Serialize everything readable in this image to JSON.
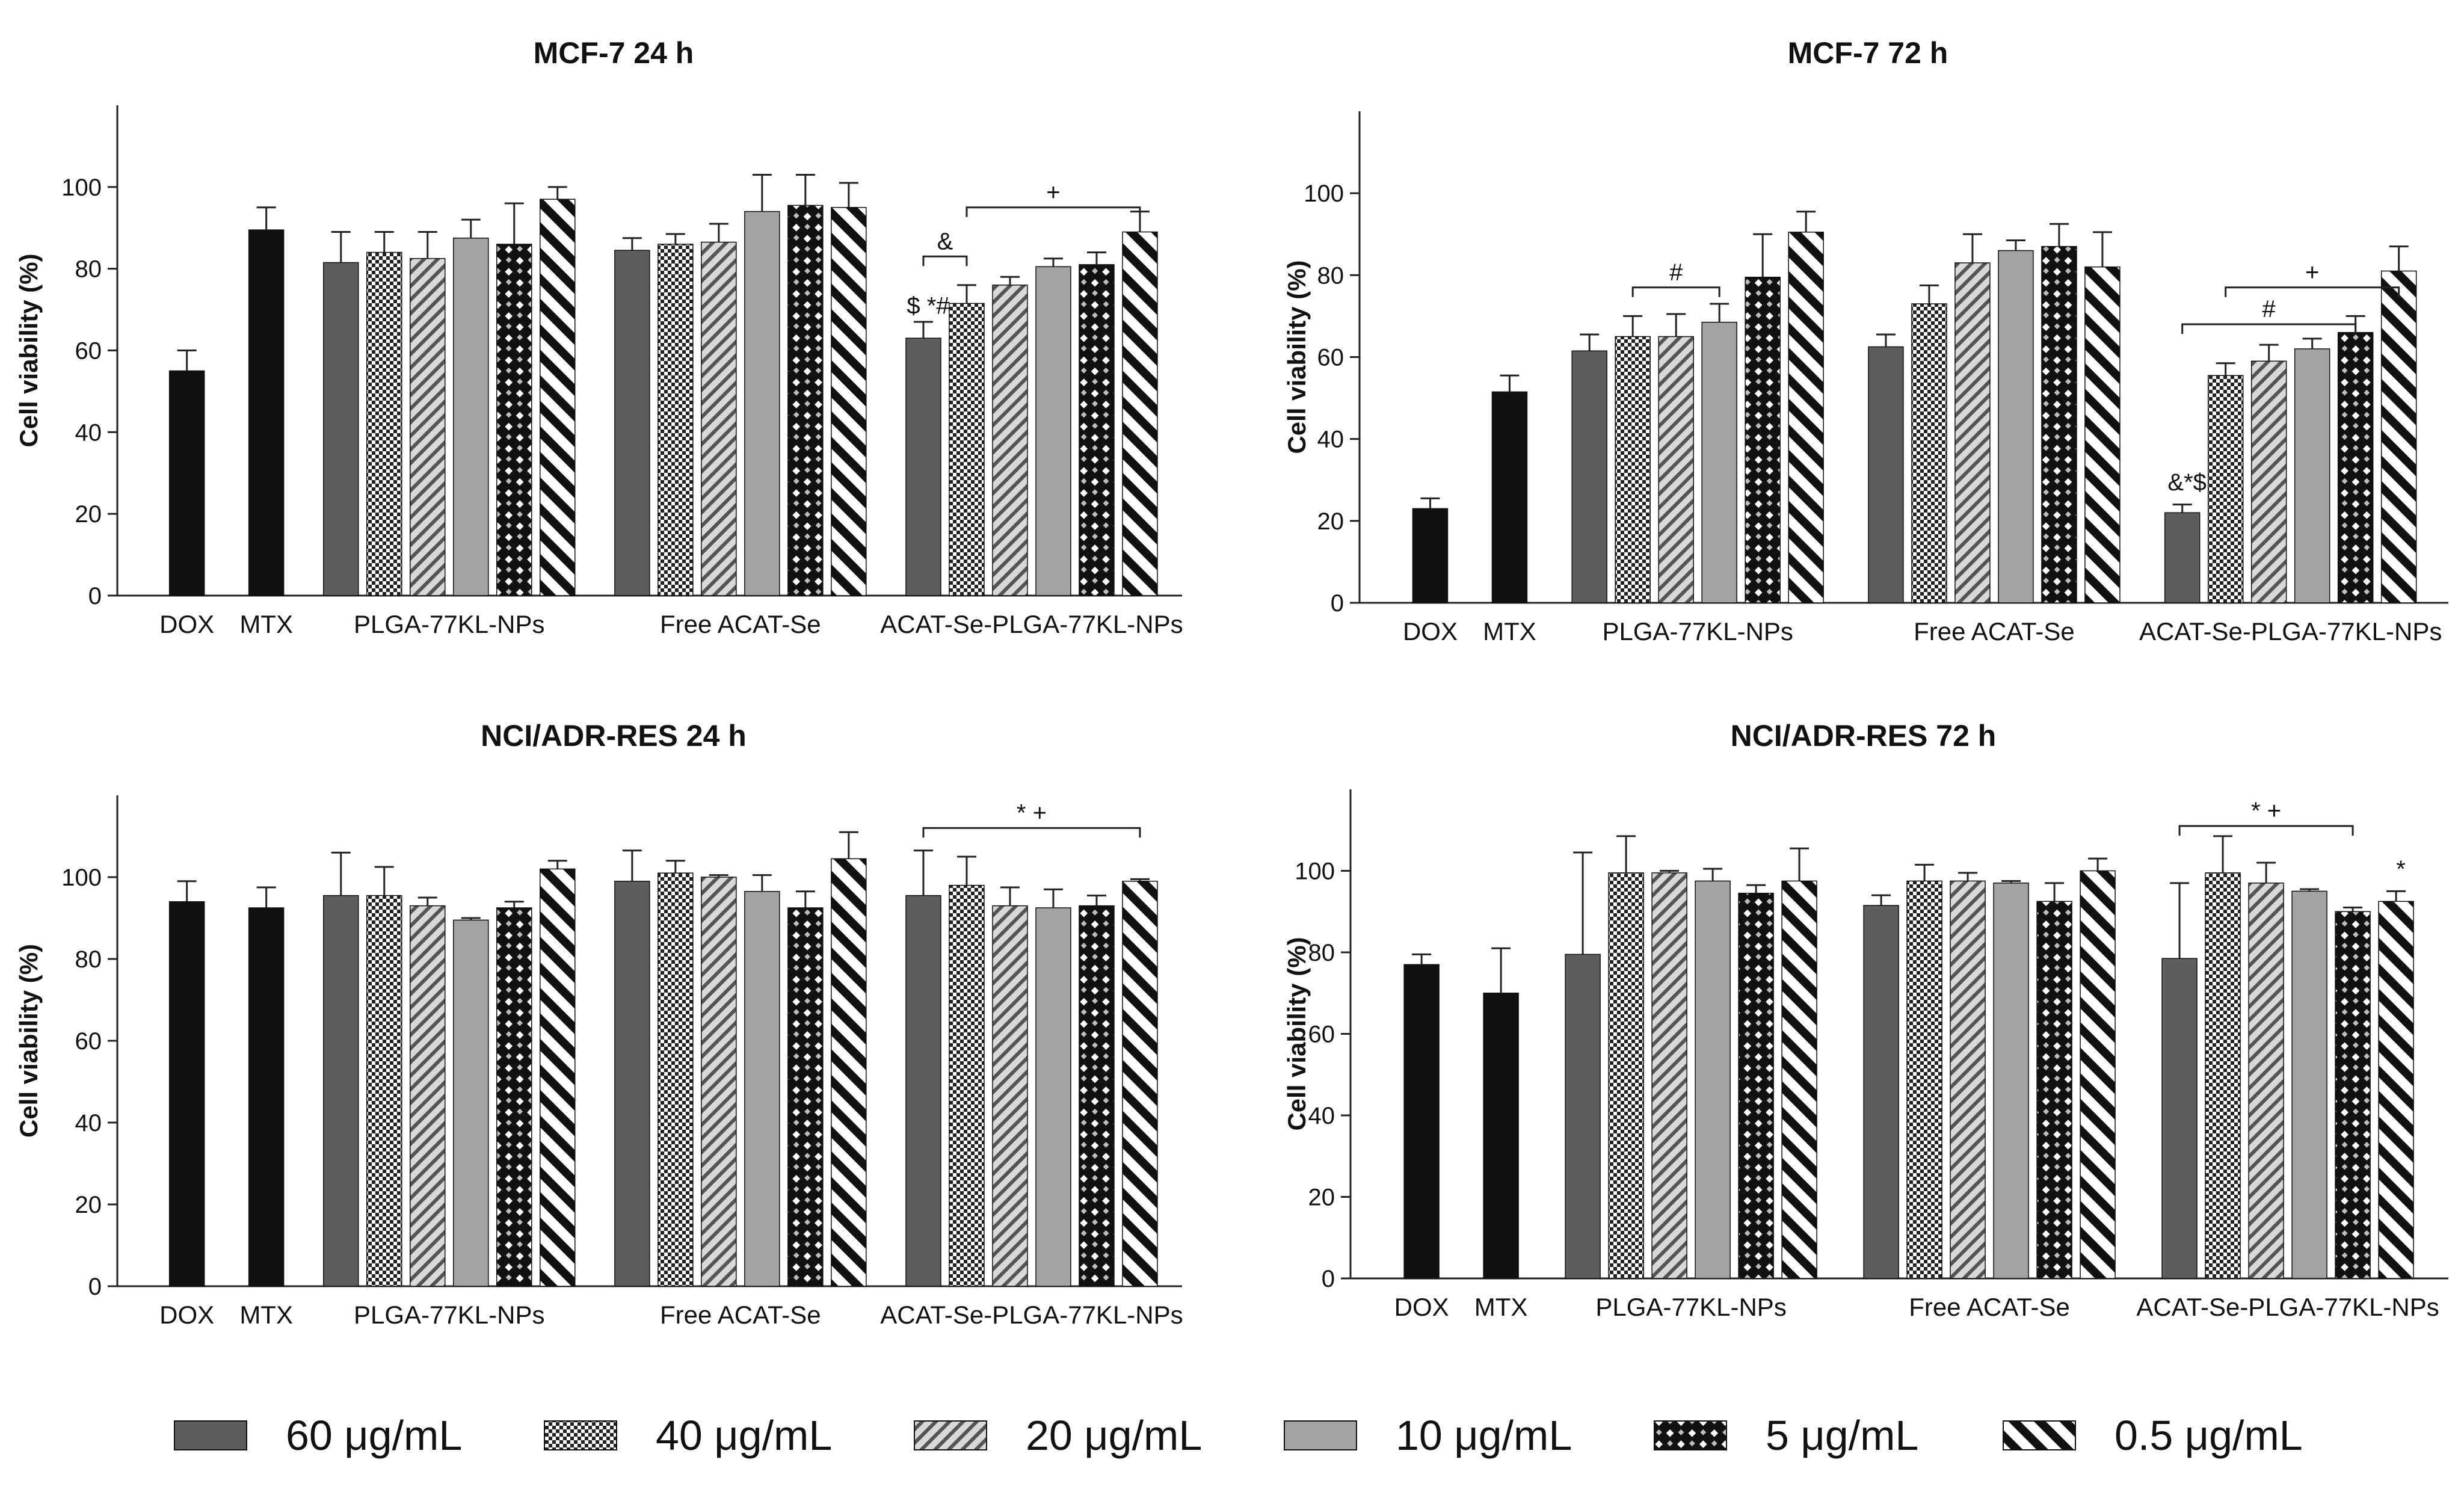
{
  "figure_title": "",
  "legend": {
    "items": [
      {
        "label": "60 μg/mL",
        "pattern": "solid-dark"
      },
      {
        "label": "40 μg/mL",
        "pattern": "checker-fine"
      },
      {
        "label": "20 μg/mL",
        "pattern": "diagonal-light"
      },
      {
        "label": "10 μg/mL",
        "pattern": "solid-light"
      },
      {
        "label": "5 μg/mL",
        "pattern": "checker-bold"
      },
      {
        "label": "0.5 μg/mL",
        "pattern": "diagonal-bold"
      }
    ]
  },
  "colors": {
    "black": "#111111",
    "dark_gray": "#5d5d5d",
    "light_gray": "#a3a3a3",
    "stroke": "#222222"
  },
  "chart_data": [
    {
      "type": "bar",
      "title": "MCF-7 24 h",
      "ylabel": "Cell viability (%)",
      "ylim": [
        0,
        120
      ],
      "yticks": [
        0,
        20,
        40,
        60,
        80,
        100
      ],
      "groups": [
        {
          "label": "DOX",
          "bars": [
            {
              "pattern": "solid-black",
              "value": 55,
              "err": 5
            }
          ]
        },
        {
          "label": "MTX",
          "bars": [
            {
              "pattern": "solid-black",
              "value": 89.5,
              "err": 5.5
            }
          ]
        },
        {
          "label": "PLGA-77KL-NPs",
          "bars": [
            {
              "pattern": "solid-dark",
              "value": 81.5,
              "err": 7.5
            },
            {
              "pattern": "checker-fine",
              "value": 84,
              "err": 5
            },
            {
              "pattern": "diagonal-light",
              "value": 82.5,
              "err": 6.5
            },
            {
              "pattern": "solid-light",
              "value": 87.5,
              "err": 4.5
            },
            {
              "pattern": "checker-bold",
              "value": 86,
              "err": 10
            },
            {
              "pattern": "diagonal-bold",
              "value": 97,
              "err": 3
            }
          ]
        },
        {
          "label": "Free ACAT-Se",
          "bars": [
            {
              "pattern": "solid-dark",
              "value": 84.5,
              "err": 3
            },
            {
              "pattern": "checker-fine",
              "value": 86,
              "err": 2.5
            },
            {
              "pattern": "diagonal-light",
              "value": 86.5,
              "err": 4.5
            },
            {
              "pattern": "solid-light",
              "value": 94,
              "err": 9
            },
            {
              "pattern": "checker-bold",
              "value": 95.5,
              "err": 7.5
            },
            {
              "pattern": "diagonal-bold",
              "value": 95,
              "err": 6
            }
          ]
        },
        {
          "label": "ACAT-Se-PLGA-77KL-NPs",
          "bars": [
            {
              "pattern": "solid-dark",
              "value": 63,
              "err": 4
            },
            {
              "pattern": "checker-fine",
              "value": 71.5,
              "err": 4.5
            },
            {
              "pattern": "diagonal-light",
              "value": 76,
              "err": 2
            },
            {
              "pattern": "solid-light",
              "value": 80.5,
              "err": 2
            },
            {
              "pattern": "checker-bold",
              "value": 81,
              "err": 3
            },
            {
              "pattern": "diagonal-bold",
              "value": 89,
              "err": 5
            }
          ]
        }
      ],
      "brackets": [
        {
          "group": 4,
          "from": 0,
          "to": 1,
          "y": 83,
          "label": "&"
        },
        {
          "group": 4,
          "from": 1,
          "to": 5,
          "y": 95,
          "label": "+"
        }
      ],
      "marks": [
        {
          "group": 4,
          "bar": 0,
          "y": 67.5,
          "label": "$ *#"
        }
      ]
    },
    {
      "type": "bar",
      "title": "MCF-7 72 h",
      "ylabel": "Cell viability (%)",
      "ylim": [
        0,
        120
      ],
      "yticks": [
        0,
        20,
        40,
        60,
        80,
        100
      ],
      "groups": [
        {
          "label": "DOX",
          "bars": [
            {
              "pattern": "solid-black",
              "value": 23,
              "err": 2.5
            }
          ]
        },
        {
          "label": "MTX",
          "bars": [
            {
              "pattern": "solid-black",
              "value": 51.5,
              "err": 4
            }
          ]
        },
        {
          "label": "PLGA-77KL-NPs",
          "bars": [
            {
              "pattern": "solid-dark",
              "value": 61.5,
              "err": 4
            },
            {
              "pattern": "checker-fine",
              "value": 65,
              "err": 5
            },
            {
              "pattern": "diagonal-light",
              "value": 65,
              "err": 5.5
            },
            {
              "pattern": "solid-light",
              "value": 68.5,
              "err": 4.5
            },
            {
              "pattern": "checker-bold",
              "value": 79.5,
              "err": 10.5
            },
            {
              "pattern": "diagonal-bold",
              "value": 90.5,
              "err": 5
            }
          ]
        },
        {
          "label": "Free ACAT-Se",
          "bars": [
            {
              "pattern": "solid-dark",
              "value": 62.5,
              "err": 3
            },
            {
              "pattern": "checker-fine",
              "value": 73,
              "err": 4.5
            },
            {
              "pattern": "diagonal-light",
              "value": 83,
              "err": 7
            },
            {
              "pattern": "solid-light",
              "value": 86,
              "err": 2.5
            },
            {
              "pattern": "checker-bold",
              "value": 87,
              "err": 5.5
            },
            {
              "pattern": "diagonal-bold",
              "value": 82,
              "err": 8.5
            }
          ]
        },
        {
          "label": "ACAT-Se-PLGA-77KL-NPs",
          "bars": [
            {
              "pattern": "solid-dark",
              "value": 22,
              "err": 2
            },
            {
              "pattern": "checker-fine",
              "value": 55.5,
              "err": 3
            },
            {
              "pattern": "diagonal-light",
              "value": 59,
              "err": 4
            },
            {
              "pattern": "solid-light",
              "value": 62,
              "err": 2.5
            },
            {
              "pattern": "checker-bold",
              "value": 66,
              "err": 4
            },
            {
              "pattern": "diagonal-bold",
              "value": 81,
              "err": 6
            }
          ]
        }
      ],
      "brackets": [
        {
          "group": 2,
          "from": 1,
          "to": 3,
          "y": 77,
          "label": "#"
        },
        {
          "group": 4,
          "from": 0,
          "to": 4,
          "y": 68,
          "label": "#"
        },
        {
          "group": 4,
          "from": 1,
          "to": 5,
          "y": 77,
          "label": "+"
        }
      ],
      "marks": [
        {
          "group": 4,
          "bar": 0,
          "y": 26,
          "label": "&*$"
        }
      ]
    },
    {
      "type": "bar",
      "title": "NCI/ADR-RES 24 h",
      "ylabel": "Cell viability (%)",
      "ylim": [
        0,
        120
      ],
      "yticks": [
        0,
        20,
        40,
        60,
        80,
        100
      ],
      "groups": [
        {
          "label": "DOX",
          "bars": [
            {
              "pattern": "solid-black",
              "value": 94,
              "err": 5
            }
          ]
        },
        {
          "label": "MTX",
          "bars": [
            {
              "pattern": "solid-black",
              "value": 92.5,
              "err": 5
            }
          ]
        },
        {
          "label": "PLGA-77KL-NPs",
          "bars": [
            {
              "pattern": "solid-dark",
              "value": 95.5,
              "err": 10.5
            },
            {
              "pattern": "checker-fine",
              "value": 95.5,
              "err": 7
            },
            {
              "pattern": "diagonal-light",
              "value": 93,
              "err": 2
            },
            {
              "pattern": "solid-light",
              "value": 89.5,
              "err": 0.5
            },
            {
              "pattern": "checker-bold",
              "value": 92.5,
              "err": 1.5
            },
            {
              "pattern": "diagonal-bold",
              "value": 102,
              "err": 2
            }
          ]
        },
        {
          "label": "Free ACAT-Se",
          "bars": [
            {
              "pattern": "solid-dark",
              "value": 99,
              "err": 7.5
            },
            {
              "pattern": "checker-fine",
              "value": 101,
              "err": 3
            },
            {
              "pattern": "diagonal-light",
              "value": 100,
              "err": 0.5
            },
            {
              "pattern": "solid-light",
              "value": 96.5,
              "err": 4
            },
            {
              "pattern": "checker-bold",
              "value": 92.5,
              "err": 4
            },
            {
              "pattern": "diagonal-bold",
              "value": 104.5,
              "err": 6.5
            }
          ]
        },
        {
          "label": "ACAT-Se-PLGA-77KL-NPs",
          "bars": [
            {
              "pattern": "solid-dark",
              "value": 95.5,
              "err": 11
            },
            {
              "pattern": "checker-fine",
              "value": 98,
              "err": 7
            },
            {
              "pattern": "diagonal-light",
              "value": 93,
              "err": 4.5
            },
            {
              "pattern": "solid-light",
              "value": 92.5,
              "err": 4.5
            },
            {
              "pattern": "checker-bold",
              "value": 93,
              "err": 2.5
            },
            {
              "pattern": "diagonal-bold",
              "value": 99,
              "err": 0.5
            }
          ]
        }
      ],
      "brackets": [
        {
          "group": 4,
          "from": 0,
          "to": 5,
          "y": 112,
          "label": "* +"
        }
      ],
      "marks": []
    },
    {
      "type": "bar",
      "title": "NCI/ADR-RES 72 h",
      "ylabel": "Cell viability (%)",
      "ylim": [
        0,
        120
      ],
      "yticks": [
        0,
        20,
        40,
        60,
        80,
        100
      ],
      "groups": [
        {
          "label": "DOX",
          "bars": [
            {
              "pattern": "solid-black",
              "value": 77,
              "err": 2.5
            }
          ]
        },
        {
          "label": "MTX",
          "bars": [
            {
              "pattern": "solid-black",
              "value": 70,
              "err": 11
            }
          ]
        },
        {
          "label": "PLGA-77KL-NPs",
          "bars": [
            {
              "pattern": "solid-dark",
              "value": 79.5,
              "err": 25
            },
            {
              "pattern": "checker-fine",
              "value": 99.5,
              "err": 9
            },
            {
              "pattern": "diagonal-light",
              "value": 99.5,
              "err": 0.5
            },
            {
              "pattern": "solid-light",
              "value": 97.5,
              "err": 3
            },
            {
              "pattern": "checker-bold",
              "value": 94.5,
              "err": 2
            },
            {
              "pattern": "diagonal-bold",
              "value": 97.5,
              "err": 8
            }
          ]
        },
        {
          "label": "Free ACAT-Se",
          "bars": [
            {
              "pattern": "solid-dark",
              "value": 91.5,
              "err": 2.5
            },
            {
              "pattern": "checker-fine",
              "value": 97.5,
              "err": 4
            },
            {
              "pattern": "diagonal-light",
              "value": 97.5,
              "err": 2
            },
            {
              "pattern": "solid-light",
              "value": 97,
              "err": 0.5
            },
            {
              "pattern": "checker-bold",
              "value": 92.5,
              "err": 4.5
            },
            {
              "pattern": "diagonal-bold",
              "value": 100,
              "err": 3
            }
          ]
        },
        {
          "label": "ACAT-Se-PLGA-77KL-NPs",
          "bars": [
            {
              "pattern": "solid-dark",
              "value": 78.5,
              "err": 18.5
            },
            {
              "pattern": "checker-fine",
              "value": 99.5,
              "err": 9
            },
            {
              "pattern": "diagonal-light",
              "value": 97,
              "err": 5
            },
            {
              "pattern": "solid-light",
              "value": 95,
              "err": 0.5
            },
            {
              "pattern": "checker-bold",
              "value": 90,
              "err": 1
            },
            {
              "pattern": "diagonal-bold",
              "value": 92.5,
              "err": 2.5
            }
          ]
        }
      ],
      "brackets": [
        {
          "group": 4,
          "from": 0,
          "to": 4,
          "y": 111,
          "label": "* +"
        }
      ],
      "marks": [
        {
          "group": 4,
          "bar": 5,
          "y": 97,
          "label": "*"
        }
      ]
    }
  ]
}
